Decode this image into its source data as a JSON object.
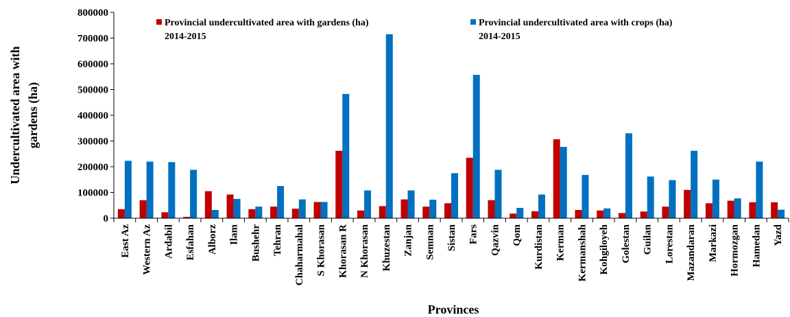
{
  "chart_data": {
    "type": "bar",
    "title": "",
    "xlabel": "Provinces",
    "ylabel": "Undercultivated area with gardens (ha)",
    "ylabel_lines": [
      "Undercultivated area with",
      "gardens (ha)"
    ],
    "ylim": [
      0,
      800000
    ],
    "yticks": [
      "0",
      "100000",
      "200000",
      "300000",
      "400000",
      "500000",
      "600000",
      "700000",
      "800000"
    ],
    "grid": false,
    "legend_position": "top",
    "categories": [
      "East Az",
      "Western Az",
      "Ardabil",
      "Esfahan",
      "Alborz",
      "Ilam",
      "Bushehr",
      "Tehran",
      "Chaharmahal",
      "S Khorasan",
      "Khorasan R",
      "N Khorasan",
      "Khuzestan",
      "Zanjan",
      "Semnan",
      "Sistan",
      "Fars",
      "Qazvin",
      "Qom",
      "Kurdistan",
      "Kerman",
      "Kermanshah",
      "Kohgiloyeh",
      "Golestan",
      "Guilan",
      "Lorestan",
      "Mazandaran",
      "Markazi",
      "Hormozgan",
      "Hamedan",
      "Yazd"
    ],
    "series": [
      {
        "name_lines": [
          "Provincial undercultivated area with gardens (ha)",
          "2014-2015"
        ],
        "color": "#c00000",
        "values": [
          35000,
          70000,
          23000,
          5000,
          105000,
          92000,
          35000,
          45000,
          37000,
          63000,
          262000,
          30000,
          47000,
          73000,
          45000,
          58000,
          235000,
          70000,
          18000,
          27000,
          307000,
          32000,
          30000,
          20000,
          26000,
          45000,
          110000,
          58000,
          68000,
          62000,
          62000
        ]
      },
      {
        "name_lines": [
          "Provincial undercultivated area with crops (ha)",
          "2014-2015"
        ],
        "color": "#0070c0",
        "values": [
          223000,
          220000,
          218000,
          188000,
          32000,
          75000,
          45000,
          125000,
          73000,
          63000,
          483000,
          108000,
          715000,
          108000,
          72000,
          175000,
          557000,
          188000,
          40000,
          92000,
          277000,
          168000,
          38000,
          330000,
          162000,
          148000,
          262000,
          150000,
          77000,
          220000,
          33000
        ]
      }
    ]
  }
}
